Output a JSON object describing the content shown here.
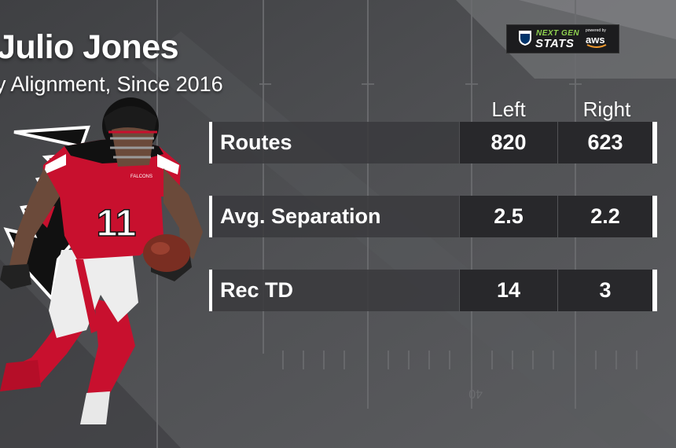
{
  "header": {
    "title": "Julio Jones",
    "subtitle": "y Alignment, Since 2016"
  },
  "logo": {
    "next_gen": "NEXT GEN",
    "stats": "STATS",
    "powered_by": "powered by",
    "aws": "aws"
  },
  "table": {
    "columns": [
      "Left",
      "Right"
    ],
    "rows": [
      {
        "label": "Routes",
        "left": "820",
        "right": "623"
      },
      {
        "label": "Avg. Separation",
        "left": "2.5",
        "right": "2.2"
      },
      {
        "label": "Rec TD",
        "left": "14",
        "right": "3"
      }
    ]
  },
  "player": {
    "jersey_number": "11",
    "jersey_text": "FALCONS"
  },
  "field": {
    "yard_marker": "40"
  },
  "colors": {
    "falcons_red": "#c8102e",
    "falcons_black": "#111111",
    "ngs_green": "#8fd14f"
  }
}
